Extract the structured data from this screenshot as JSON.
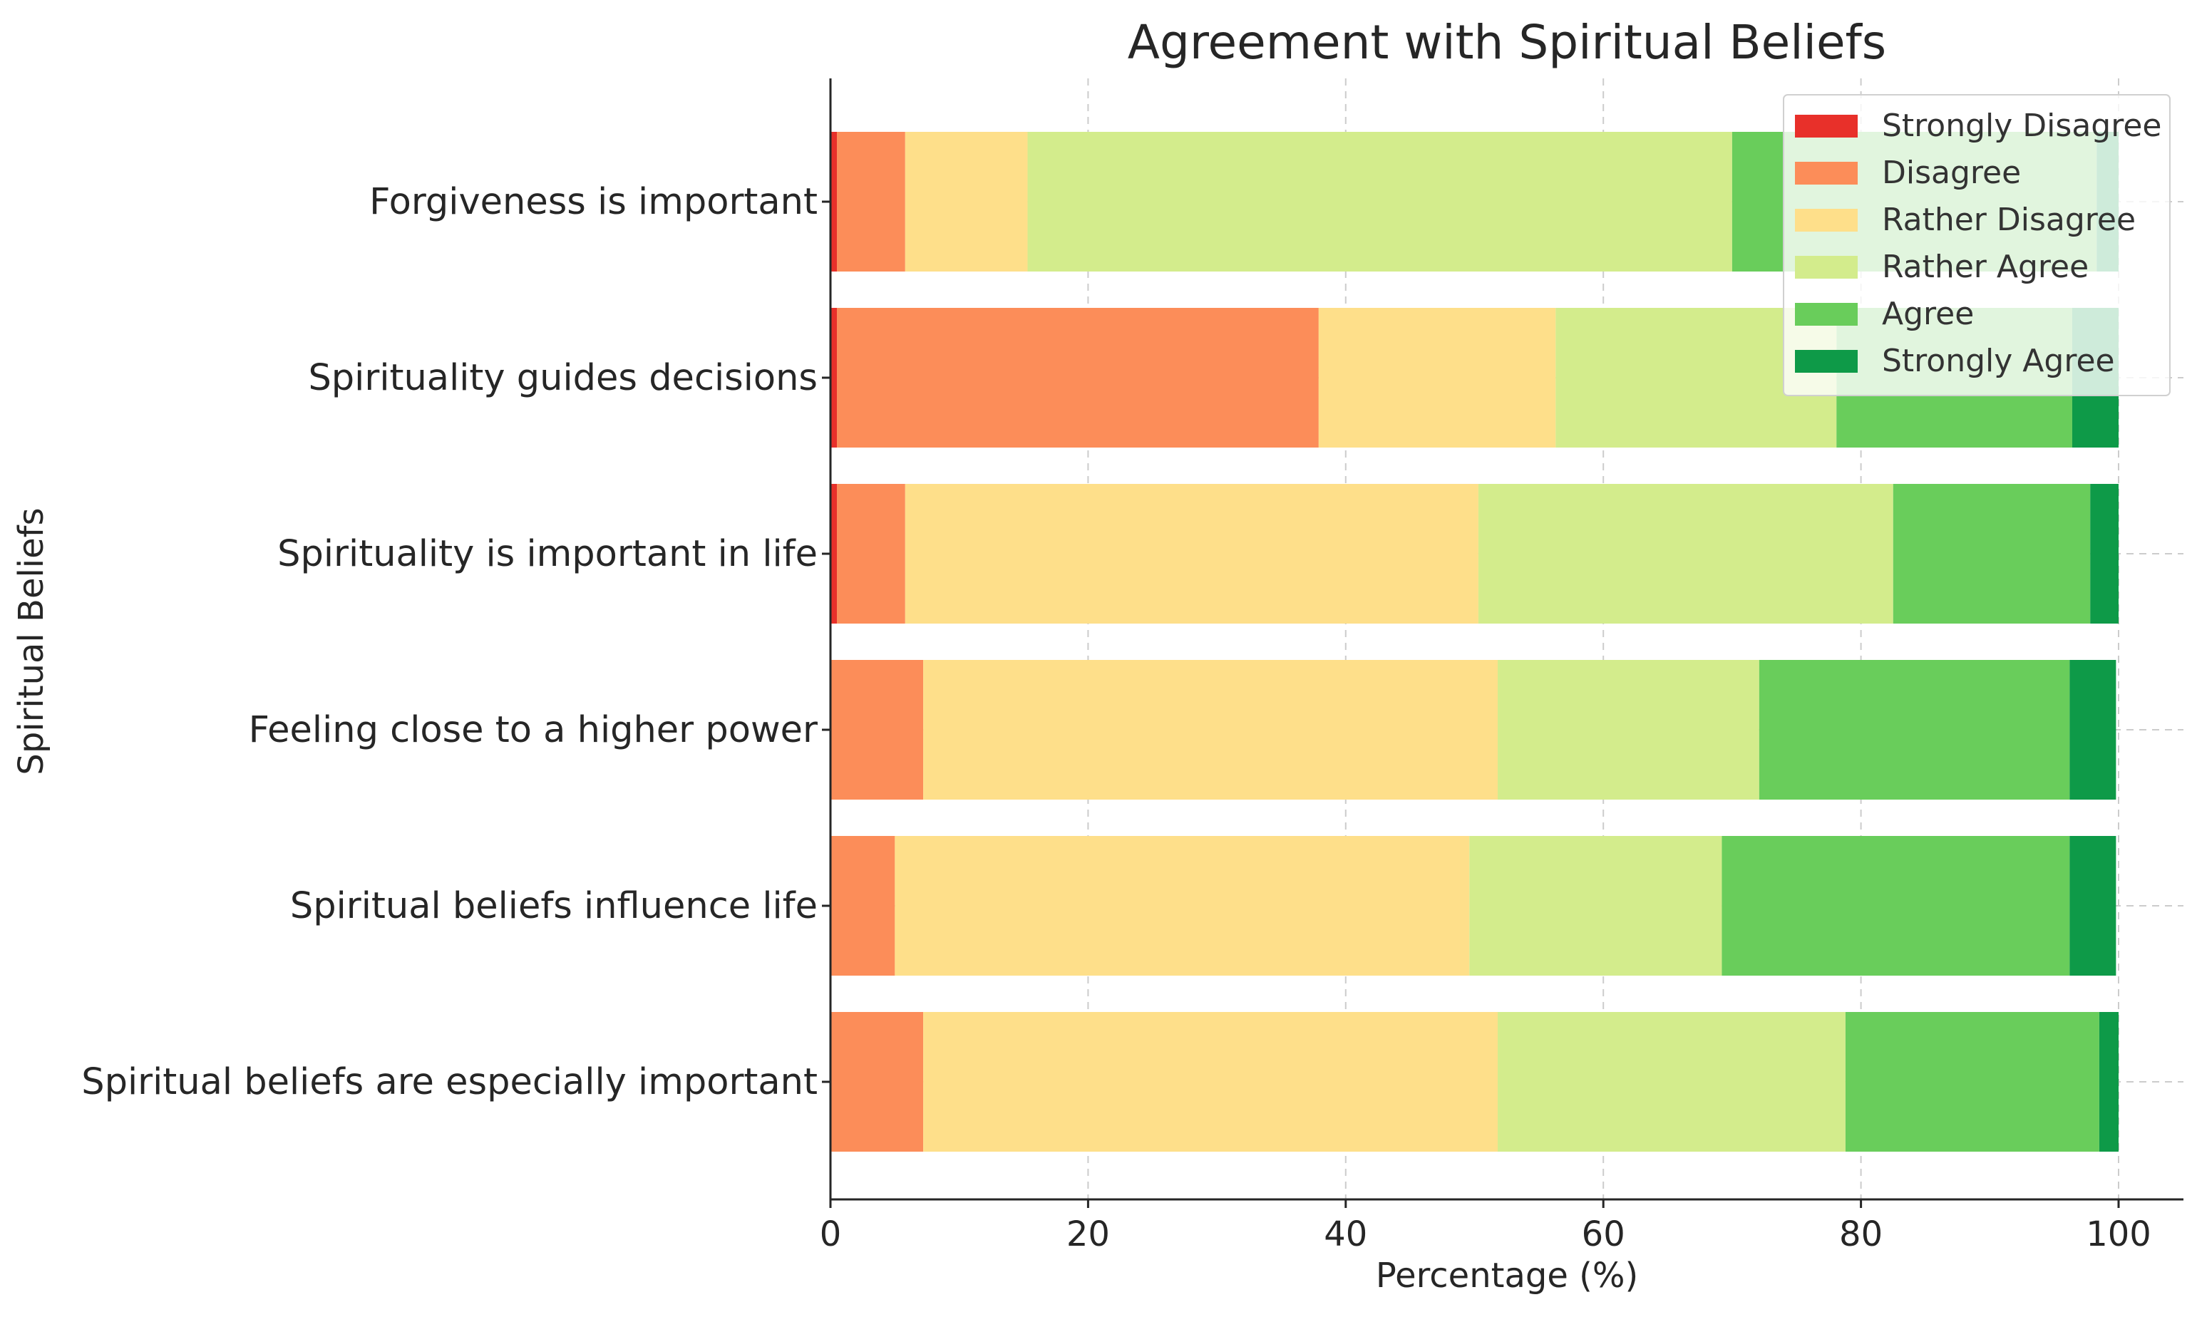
{
  "chart_data": {
    "type": "bar",
    "orientation": "horizontal",
    "stacked": true,
    "title": "Agreement with Spiritual Beliefs",
    "xlabel": "Percentage (%)",
    "ylabel": "Spiritual Beliefs",
    "xlim": [
      0,
      100
    ],
    "xticks": [
      0,
      20,
      40,
      60,
      80,
      100
    ],
    "grid": true,
    "legend_position": "top-right",
    "categories": [
      "Forgiveness is important",
      "Spirituality guides decisions",
      "Spirituality is important in life",
      "Feeling close to a higher power",
      "Spiritual beliefs influence life",
      "Spiritual beliefs are especially important"
    ],
    "series": [
      {
        "name": "Strongly Disagree",
        "color": "#e8302a",
        "values": [
          0.5,
          0.5,
          0.5,
          0,
          0,
          0
        ]
      },
      {
        "name": "Disagree",
        "color": "#fc8d59",
        "values": [
          5.3,
          37.4,
          5.3,
          7.2,
          5.0,
          7.2
        ]
      },
      {
        "name": "Rather Disagree",
        "color": "#fedf8a",
        "values": [
          9.5,
          18.4,
          44.5,
          44.6,
          44.6,
          44.6
        ]
      },
      {
        "name": "Rather Agree",
        "color": "#d3ec8c",
        "values": [
          54.7,
          21.8,
          32.2,
          20.3,
          19.6,
          27.0
        ]
      },
      {
        "name": "Agree",
        "color": "#69cd5b",
        "values": [
          28.3,
          18.3,
          15.3,
          24.1,
          27.0,
          19.7
        ]
      },
      {
        "name": "Strongly Agree",
        "color": "#0e9a48",
        "values": [
          1.7,
          3.6,
          2.2,
          3.6,
          3.6,
          1.5
        ]
      }
    ]
  }
}
